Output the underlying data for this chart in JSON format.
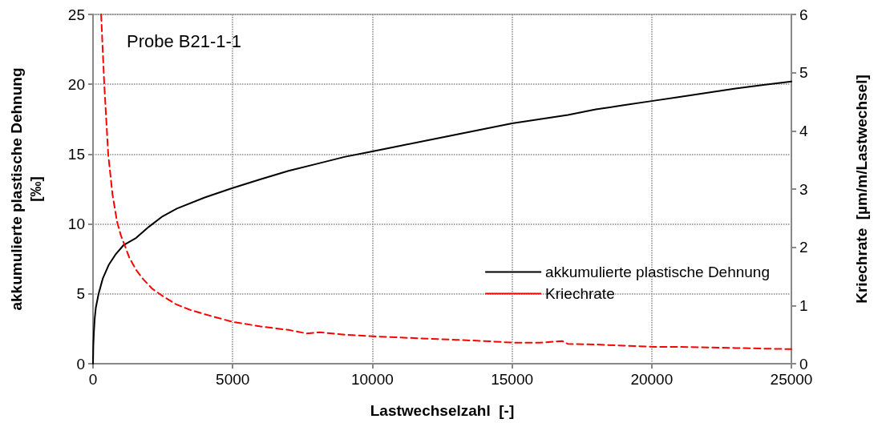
{
  "chart_data": {
    "type": "line",
    "xlabel": "Lastwechselzahl  [-]",
    "ylabel": "akkumulierte plastische Dehnung\n[‰]",
    "y2label": "Kriechrate  [µm/m/Lastwechsel]",
    "annotations": [
      "Probe B21-1-1"
    ],
    "xlim": [
      0,
      25000
    ],
    "xticks": [
      0,
      5000,
      10000,
      15000,
      20000,
      25000
    ],
    "ylim": [
      0,
      25
    ],
    "yticks": [
      0,
      5,
      10,
      15,
      20,
      25
    ],
    "y2lim": [
      0,
      6
    ],
    "y2ticks": [
      0,
      1,
      2,
      3,
      4,
      5,
      6
    ],
    "grid": true,
    "legend": "right",
    "series": [
      {
        "name": "akkumulierte plastische Dehnung",
        "color": "#000000",
        "line_style": "solid",
        "x": [
          0,
          10,
          30,
          60,
          100,
          200,
          350,
          570,
          800,
          1100,
          1540,
          2000,
          2490,
          3000,
          4000,
          4970,
          6000,
          7000,
          8000,
          9000,
          10000,
          11000,
          12000,
          13000,
          14000,
          15000,
          16000,
          17000,
          18000,
          19000,
          20000,
          21000,
          22000,
          23000,
          24000,
          25000
        ],
        "values": [
          0,
          1.2,
          2.2,
          3.2,
          4.0,
          5.0,
          6.1,
          7.1,
          7.8,
          8.5,
          9.0,
          9.8,
          10.55,
          11.1,
          11.9,
          12.56,
          13.2,
          13.8,
          14.3,
          14.8,
          15.2,
          15.6,
          16.0,
          16.4,
          16.8,
          17.2,
          17.5,
          17.8,
          18.2,
          18.5,
          18.8,
          19.1,
          19.4,
          19.7,
          19.95,
          20.2
        ]
      },
      {
        "name": "Kriechrate",
        "color": "#ff0000",
        "line_style": "dashed",
        "axis": "y2",
        "x": [
          290,
          400,
          545,
          700,
          860,
          1000,
          1145,
          1300,
          1545,
          1800,
          2115,
          2500,
          2975,
          3500,
          4000,
          4980,
          6000,
          7000,
          7640,
          8120,
          9000,
          10000,
          11000,
          12000,
          13000,
          14000,
          15075,
          16000,
          16790,
          17000,
          18000,
          19000,
          20110,
          21000,
          22000,
          23000,
          24000,
          25000
        ],
        "values": [
          6,
          4.83,
          3.59,
          2.9,
          2.44,
          2.2,
          2.02,
          1.82,
          1.61,
          1.45,
          1.29,
          1.16,
          1.02,
          0.92,
          0.85,
          0.72,
          0.64,
          0.58,
          0.52,
          0.54,
          0.5,
          0.47,
          0.45,
          0.43,
          0.41,
          0.39,
          0.36,
          0.36,
          0.39,
          0.34,
          0.33,
          0.31,
          0.29,
          0.29,
          0.28,
          0.27,
          0.26,
          0.25
        ]
      }
    ]
  }
}
